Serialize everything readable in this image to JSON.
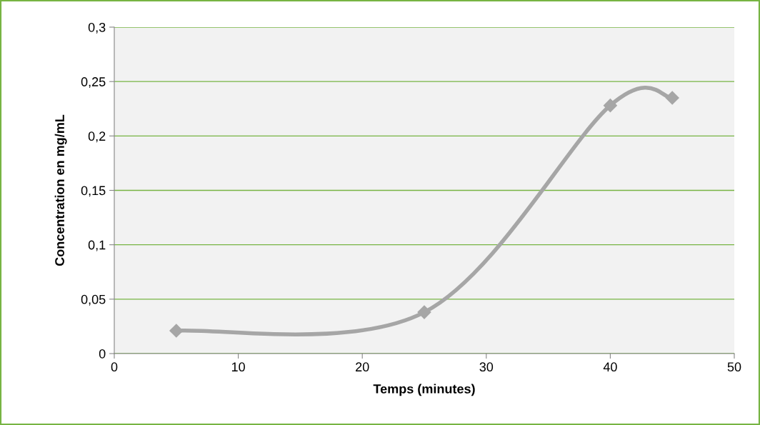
{
  "chart_data": {
    "type": "line",
    "xlabel": "Temps (minutes)",
    "ylabel": "Concentration en mg/mL",
    "x": [
      5,
      25,
      40,
      45
    ],
    "series": [
      {
        "color": "#a6a6a6",
        "values": [
          0.021,
          0.038,
          0.228,
          0.235
        ]
      }
    ],
    "xlim": [
      0,
      50
    ],
    "xticks": [
      0,
      10,
      20,
      30,
      40,
      50
    ],
    "ylim": [
      0,
      0.3
    ],
    "yticks": [
      {
        "value": 0,
        "label": "0"
      },
      {
        "value": 0.05,
        "label": "0,05"
      },
      {
        "value": 0.1,
        "label": "0,1"
      },
      {
        "value": 0.15,
        "label": "0,15"
      },
      {
        "value": 0.2,
        "label": "0,2"
      },
      {
        "value": 0.25,
        "label": "0,25"
      },
      {
        "value": 0.3,
        "label": "0,3"
      }
    ],
    "grid": "y",
    "marker": "diamond",
    "line_style": "solid",
    "legend": false
  }
}
